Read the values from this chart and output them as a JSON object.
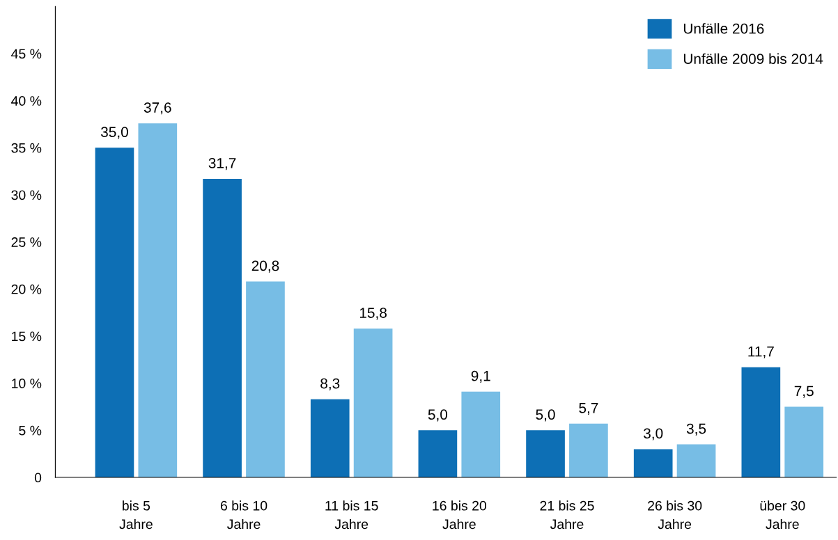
{
  "chart_data": {
    "type": "bar",
    "categories": [
      "bis 5\nJahre",
      "6 bis 10\nJahre",
      "11 bis 15\nJahre",
      "16 bis 20\nJahre",
      "21 bis 25\nJahre",
      "26 bis 30\nJahre",
      "über 30\nJahre"
    ],
    "series": [
      {
        "name": "Unfälle 2016",
        "color": "#0d6fb5",
        "values": [
          35.0,
          31.7,
          8.3,
          5.0,
          5.0,
          3.0,
          11.7
        ],
        "value_labels": [
          "35,0",
          "31,7",
          "8,3",
          "5,0",
          "5,0",
          "3,0",
          "11,7"
        ]
      },
      {
        "name": "Unfälle 2009 bis 2014",
        "color": "#77bde5",
        "values": [
          37.6,
          20.8,
          15.8,
          9.1,
          5.7,
          3.5,
          7.5
        ],
        "value_labels": [
          "37,6",
          "20,8",
          "15,8",
          "9,1",
          "5,7",
          "3,5",
          "7,5"
        ]
      }
    ],
    "ylim": [
      0,
      50
    ],
    "yticks": [
      0,
      {
        "value": 5,
        "label": "5 %"
      },
      {
        "value": 10,
        "label": "10 %"
      },
      {
        "value": 15,
        "label": "15 %"
      },
      {
        "value": 20,
        "label": "20 %"
      },
      {
        "value": 25,
        "label": "25 %"
      },
      {
        "value": 30,
        "label": "30 %"
      },
      {
        "value": 35,
        "label": "35 %"
      },
      {
        "value": 40,
        "label": "40 %"
      },
      {
        "value": 45,
        "label": "45 %"
      }
    ],
    "grid": false,
    "legend": "top right"
  }
}
